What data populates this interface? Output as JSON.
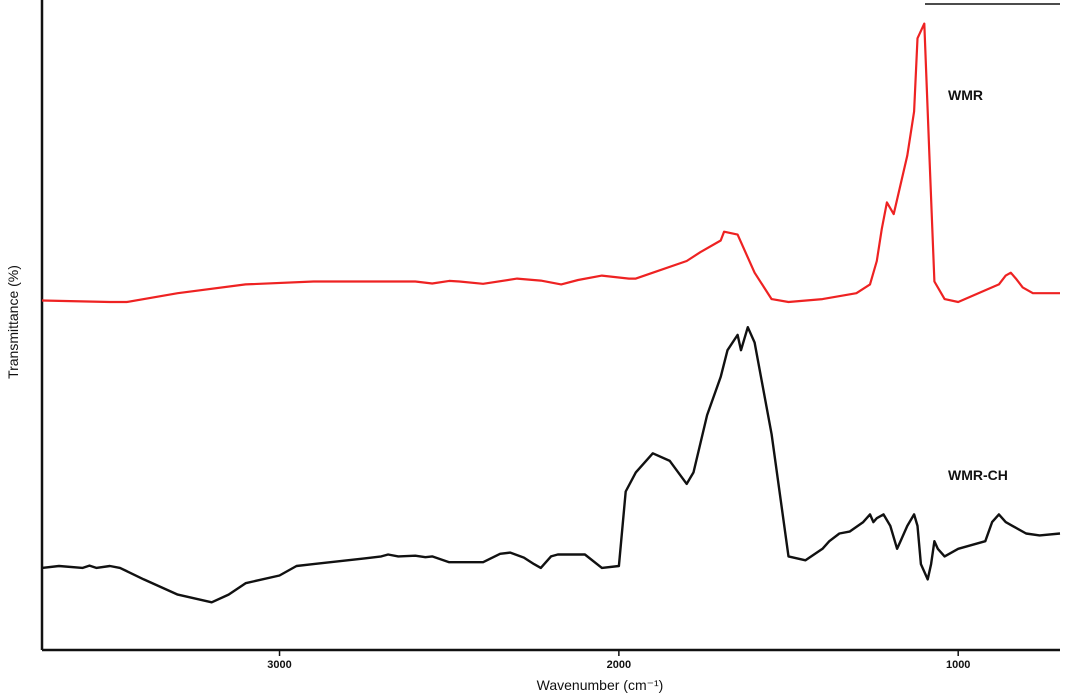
{
  "chart_data": {
    "type": "line",
    "title": "",
    "xlabel": "Wavenumber (cm⁻¹)",
    "ylabel": "Transmittance (%)",
    "xlim": [
      3700,
      700
    ],
    "x_reversed": true,
    "grid": false,
    "y_ticks_shown": false,
    "x_ticks": [
      3000,
      2000,
      1000
    ],
    "x_tick_labels": [
      "3000",
      "2000",
      "1000"
    ],
    "series_labels_placement": "inline-right",
    "series": [
      {
        "name": "WMR",
        "color": "#ee2222",
        "x": [
          3700,
          3500,
          3450,
          3300,
          3100,
          2900,
          2600,
          2550,
          2500,
          2470,
          2400,
          2300,
          2230,
          2170,
          2120,
          2050,
          1970,
          1950,
          1900,
          1800,
          1760,
          1700,
          1690,
          1650,
          1600,
          1550,
          1500,
          1400,
          1300,
          1260,
          1240,
          1225,
          1210,
          1190,
          1150,
          1130,
          1120,
          1100,
          1085,
          1070,
          1040,
          1000,
          920,
          880,
          860,
          845,
          830,
          810,
          780,
          700
        ],
        "y": [
          0.5,
          0,
          0,
          3,
          6,
          7,
          7,
          6.3,
          7.2,
          7,
          6.2,
          8,
          7.3,
          6,
          7.5,
          9,
          8,
          8,
          10,
          14,
          17,
          21,
          24,
          23,
          10,
          1,
          0,
          1,
          3,
          6,
          14,
          25,
          34,
          30,
          50,
          65,
          90,
          95,
          50,
          7,
          1,
          0,
          4,
          6,
          9,
          10,
          8,
          5,
          3,
          3
        ]
      },
      {
        "name": "WMR-CH",
        "color": "#111111",
        "x": [
          3700,
          3650,
          3580,
          3560,
          3540,
          3500,
          3470,
          3400,
          3300,
          3200,
          3150,
          3100,
          3000,
          2950,
          2900,
          2850,
          2800,
          2750,
          2700,
          2680,
          2650,
          2600,
          2570,
          2550,
          2500,
          2450,
          2400,
          2350,
          2320,
          2280,
          2250,
          2230,
          2200,
          2180,
          2100,
          2050,
          2000,
          1980,
          1950,
          1900,
          1850,
          1800,
          1780,
          1740,
          1720,
          1700,
          1680,
          1650,
          1640,
          1620,
          1600,
          1550,
          1500,
          1450,
          1400,
          1380,
          1350,
          1320,
          1280,
          1260,
          1250,
          1240,
          1220,
          1200,
          1180,
          1170,
          1150,
          1130,
          1120,
          1110,
          1100,
          1090,
          1080,
          1070,
          1060,
          1040,
          1000,
          920,
          900,
          880,
          860,
          840,
          800,
          760,
          700
        ],
        "y": [
          5,
          5.5,
          5,
          5.6,
          5,
          5.5,
          5,
          2,
          -2,
          -4,
          -2,
          1,
          3,
          5.5,
          6,
          6.5,
          7,
          7.5,
          8,
          8.5,
          8,
          8.2,
          7.8,
          8,
          6.5,
          6.5,
          6.5,
          8.7,
          9,
          7.7,
          6,
          5,
          8,
          8.5,
          8.5,
          5,
          5.5,
          25,
          30,
          35,
          33,
          27,
          30,
          45,
          50,
          55,
          62,
          66,
          62,
          68,
          64,
          40,
          8,
          7,
          10,
          12,
          14,
          14.5,
          17,
          19,
          17,
          18,
          19,
          16,
          10,
          12,
          16,
          19,
          16,
          6,
          4,
          2,
          6,
          12,
          10,
          8,
          10,
          12,
          17,
          19,
          17,
          16,
          14,
          13.5,
          14
        ]
      }
    ],
    "offsets_note": ""
  }
}
